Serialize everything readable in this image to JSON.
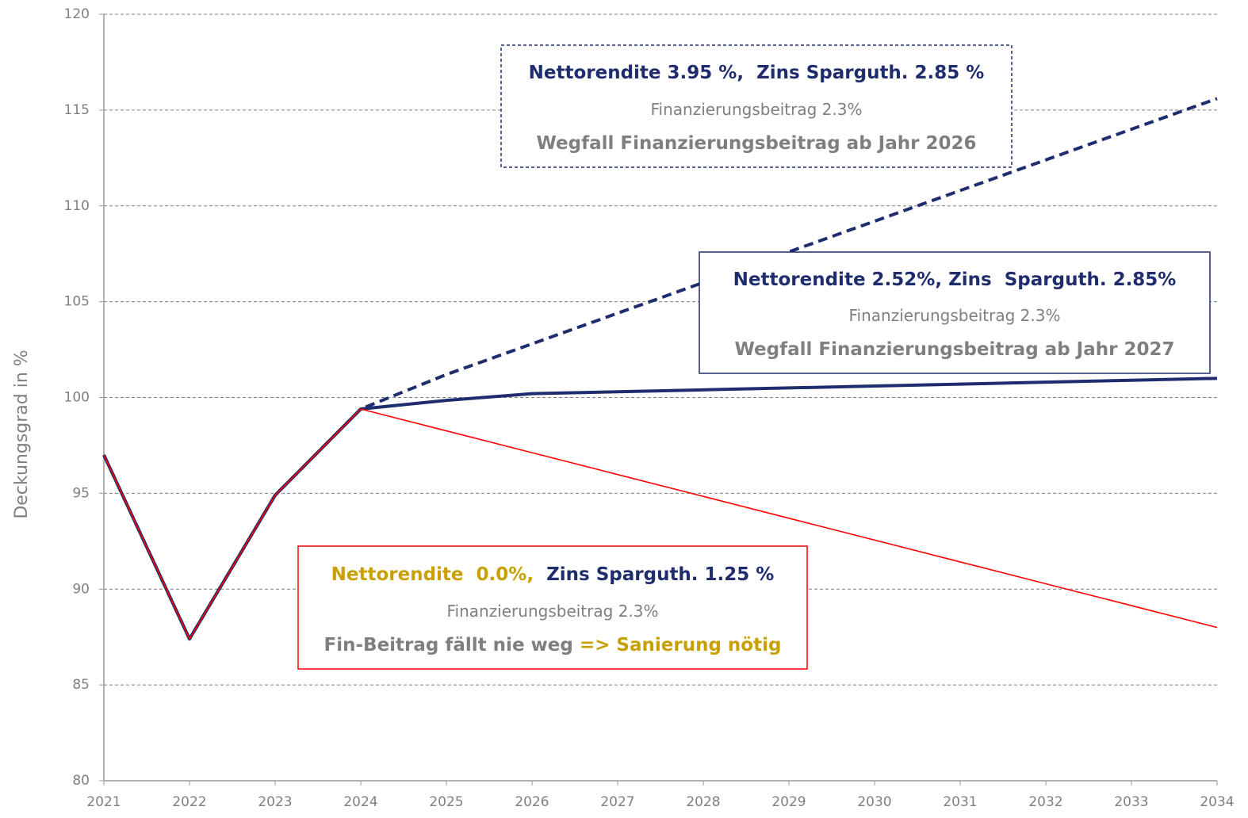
{
  "chart_data": {
    "type": "line",
    "y_label": "Deckungsgrad in %",
    "x": [
      2021,
      2022,
      2023,
      2024,
      2025,
      2026,
      2027,
      2028,
      2029,
      2030,
      2031,
      2032,
      2033,
      2034
    ],
    "xlim": [
      2021,
      2034
    ],
    "xticks": [
      2021,
      2022,
      2023,
      2024,
      2025,
      2026,
      2027,
      2028,
      2029,
      2030,
      2031,
      2032,
      2033,
      2034
    ],
    "ylim": [
      80,
      120
    ],
    "yticks": [
      80,
      85,
      90,
      95,
      100,
      105,
      110,
      115,
      120
    ],
    "grid": true,
    "series": [
      {
        "color": "#1f2d6e",
        "dashed": true,
        "values": [
          97.0,
          87.4,
          94.9,
          99.4,
          101.2,
          102.8,
          104.4,
          106.0,
          107.6,
          109.2,
          110.8,
          112.4,
          114.0,
          115.6
        ]
      },
      {
        "color": "#1f2d6e",
        "dashed": false,
        "values": [
          97.0,
          87.4,
          94.9,
          99.4,
          99.85,
          100.2,
          100.3,
          100.4,
          100.5,
          100.6,
          100.7,
          100.8,
          100.9,
          101.0
        ]
      },
      {
        "color": "#ff0000",
        "dashed": false,
        "values": [
          97.0,
          87.4,
          94.9,
          99.4,
          98.26,
          97.12,
          95.98,
          94.84,
          93.7,
          92.56,
          91.42,
          90.28,
          89.14,
          88.0
        ]
      }
    ],
    "annotations": [
      {
        "border_color": "#1f2d6e",
        "border_dashed": true,
        "lines": [
          [
            {
              "text": "Nettorendite 3.95 %,  Zins Sparguth. 2.85 %",
              "color": "#1f2d6e",
              "bold": true
            }
          ],
          [
            {
              "text": "Finanzierungsbeitrag 2.3%",
              "color": "#7f7f7f",
              "bold": false
            }
          ],
          [
            {
              "text": "Wegfall Finanzierungsbeitrag ab Jahr 2026",
              "color": "#7f7f7f",
              "bold": true
            }
          ]
        ]
      },
      {
        "border_color": "#1f2d6e",
        "border_dashed": false,
        "lines": [
          [
            {
              "text": "Nettorendite 2.52%, Zins  Sparguth. 2.85%",
              "color": "#1f2d6e",
              "bold": true
            }
          ],
          [
            {
              "text": "Finanzierungsbeitrag 2.3%",
              "color": "#7f7f7f",
              "bold": false
            }
          ],
          [
            {
              "text": "Wegfall Finanzierungsbeitrag ab Jahr 2027",
              "color": "#7f7f7f",
              "bold": true
            }
          ]
        ]
      },
      {
        "border_color": "#ff0000",
        "border_dashed": false,
        "lines": [
          [
            {
              "text": "Nettorendite  0.0%,  ",
              "color": "#c9a000",
              "bold": true
            },
            {
              "text": "Zins Sparguth. 1.25 %",
              "color": "#1f2d6e",
              "bold": true
            }
          ],
          [
            {
              "text": "Finanzierungsbeitrag 2.3%",
              "color": "#7f7f7f",
              "bold": false
            }
          ],
          [
            {
              "text": "Fin-Beitrag fällt nie weg ",
              "color": "#7f7f7f",
              "bold": true
            },
            {
              "text": "=> Sanierung nötig",
              "color": "#c9a000",
              "bold": true
            }
          ]
        ]
      }
    ]
  }
}
